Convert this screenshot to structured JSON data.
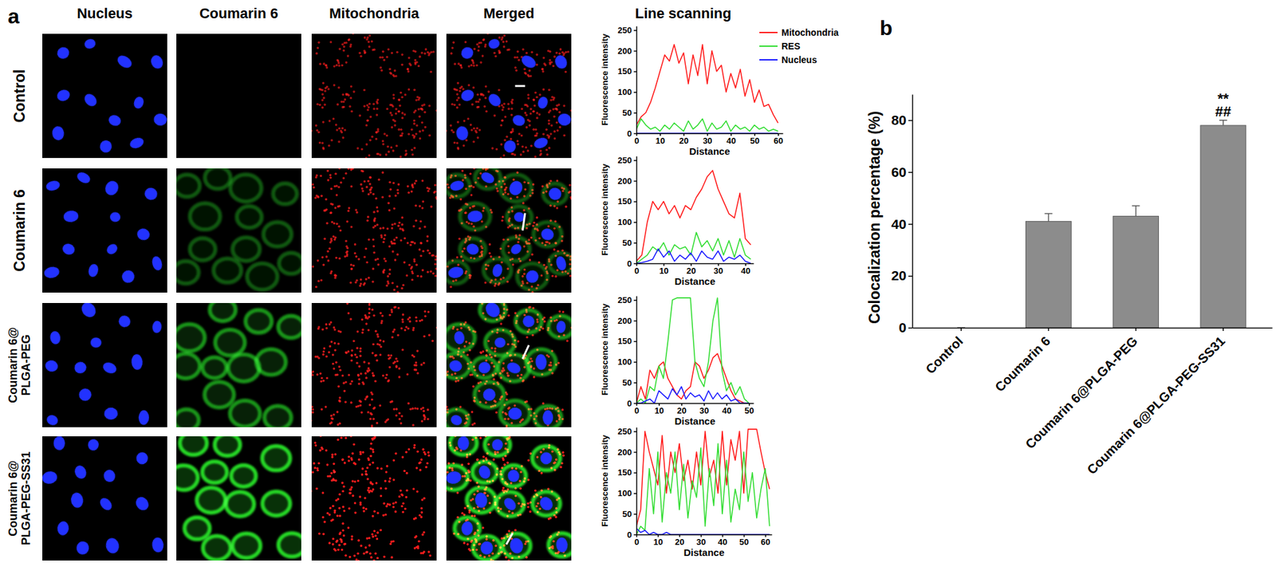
{
  "figure": {
    "panels": [
      "a",
      "b"
    ],
    "column_headers": [
      "Nucleus",
      "Coumarin 6",
      "Mitochondria",
      "Merged"
    ],
    "row_labels": [
      [
        "Control"
      ],
      [
        "Coumarin 6"
      ],
      [
        "Coumarin 6@",
        "PLGA-PEG"
      ],
      [
        "Coumarin 6@",
        "PLGA-PEG-SS31"
      ]
    ],
    "line_scan_title": "Line scanning"
  },
  "chart_data": [
    {
      "type": "line",
      "xlabel": "Distance",
      "ylabel": "Fluorescence intensity",
      "legend": "upper right",
      "x": [
        0,
        2,
        4,
        6,
        8,
        10,
        12,
        14,
        16,
        18,
        20,
        22,
        24,
        26,
        28,
        30,
        32,
        34,
        36,
        38,
        40,
        42,
        44,
        46,
        48,
        50,
        52,
        54,
        56,
        58,
        60
      ],
      "series": [
        {
          "name": "Mitochondria",
          "color": "#ff1a1a",
          "values": [
            20,
            40,
            50,
            75,
            110,
            150,
            190,
            175,
            215,
            170,
            195,
            120,
            190,
            140,
            215,
            120,
            200,
            150,
            165,
            100,
            145,
            110,
            155,
            90,
            130,
            75,
            105,
            65,
            70,
            45,
            25
          ]
        },
        {
          "name": "RES",
          "color": "#33dd33",
          "values": [
            10,
            35,
            20,
            10,
            15,
            5,
            20,
            10,
            25,
            15,
            5,
            30,
            10,
            20,
            35,
            5,
            25,
            10,
            15,
            30,
            5,
            20,
            10,
            15,
            5,
            20,
            10,
            15,
            5,
            10,
            5
          ]
        },
        {
          "name": "Nucleus",
          "color": "#1a1aff",
          "values": [
            0,
            0,
            0,
            0,
            0,
            0,
            0,
            0,
            0,
            0,
            0,
            0,
            0,
            0,
            0,
            0,
            0,
            0,
            0,
            0,
            0,
            0,
            0,
            0,
            0,
            0,
            0,
            0,
            0,
            0,
            0
          ]
        }
      ],
      "xlim": [
        0,
        62
      ],
      "xticks": [
        0,
        10,
        20,
        30,
        40,
        50,
        60
      ],
      "ylim": [
        0,
        260
      ],
      "yticks": [
        0,
        50,
        100,
        150,
        200,
        250
      ]
    },
    {
      "type": "line",
      "xlabel": "Distance",
      "ylabel": "Fluorescence intensity",
      "x": [
        0,
        2,
        4,
        6,
        8,
        10,
        12,
        14,
        16,
        18,
        20,
        22,
        24,
        26,
        28,
        30,
        32,
        34,
        36,
        38,
        40,
        42
      ],
      "series": [
        {
          "color": "#ff1a1a",
          "values": [
            5,
            20,
            100,
            150,
            130,
            150,
            120,
            140,
            110,
            140,
            130,
            160,
            180,
            210,
            225,
            180,
            150,
            120,
            110,
            170,
            60,
            45
          ]
        },
        {
          "color": "#33dd33",
          "values": [
            0,
            10,
            20,
            40,
            30,
            50,
            20,
            45,
            35,
            40,
            20,
            75,
            40,
            55,
            30,
            60,
            20,
            55,
            15,
            60,
            20,
            10
          ]
        },
        {
          "color": "#1a1aff",
          "values": [
            0,
            2,
            5,
            10,
            35,
            15,
            30,
            5,
            20,
            10,
            25,
            5,
            30,
            15,
            10,
            30,
            5,
            15,
            10,
            20,
            5,
            0
          ]
        }
      ],
      "xlim": [
        0,
        43
      ],
      "xticks": [
        0,
        10,
        20,
        30,
        40
      ],
      "ylim": [
        0,
        260
      ],
      "yticks": [
        0,
        50,
        100,
        150,
        200,
        250
      ]
    },
    {
      "type": "line",
      "xlabel": "Distance",
      "ylabel": "Fluorescence intensity",
      "x": [
        0,
        2,
        4,
        6,
        8,
        10,
        12,
        14,
        16,
        18,
        20,
        22,
        24,
        26,
        28,
        30,
        32,
        34,
        36,
        38,
        40,
        42,
        44,
        46,
        48,
        50
      ],
      "series": [
        {
          "color": "#ff1a1a",
          "values": [
            0,
            40,
            10,
            80,
            60,
            90,
            100,
            60,
            40,
            20,
            10,
            30,
            40,
            100,
            90,
            60,
            80,
            110,
            120,
            90,
            60,
            30,
            10,
            5,
            0,
            0
          ]
        },
        {
          "color": "#33dd33",
          "values": [
            0,
            10,
            0,
            40,
            30,
            90,
            60,
            150,
            250,
            255,
            255,
            255,
            255,
            100,
            60,
            40,
            100,
            200,
            255,
            80,
            30,
            50,
            20,
            40,
            10,
            0
          ]
        },
        {
          "color": "#1a1aff",
          "values": [
            0,
            0,
            5,
            10,
            0,
            30,
            20,
            10,
            35,
            20,
            40,
            10,
            25,
            15,
            20,
            5,
            30,
            10,
            25,
            10,
            20,
            5,
            10,
            0,
            0,
            0
          ]
        }
      ],
      "xlim": [
        0,
        52
      ],
      "xticks": [
        0,
        10,
        20,
        30,
        40,
        50
      ],
      "ylim": [
        0,
        260
      ],
      "yticks": [
        0,
        50,
        100,
        150,
        200,
        250
      ]
    },
    {
      "type": "line",
      "xlabel": "Distance",
      "ylabel": "Fluorescence intensity",
      "x": [
        0,
        2,
        4,
        6,
        8,
        10,
        12,
        14,
        16,
        18,
        20,
        22,
        24,
        26,
        28,
        30,
        32,
        34,
        36,
        38,
        40,
        42,
        44,
        46,
        48,
        50,
        52,
        54,
        56,
        58,
        60,
        62
      ],
      "series": [
        {
          "color": "#ff1a1a",
          "values": [
            20,
            60,
            250,
            200,
            160,
            120,
            240,
            100,
            200,
            150,
            220,
            130,
            180,
            110,
            200,
            120,
            250,
            140,
            180,
            100,
            250,
            120,
            230,
            180,
            250,
            100,
            255,
            255,
            255,
            200,
            150,
            110
          ]
        },
        {
          "color": "#33dd33",
          "values": [
            0,
            20,
            10,
            160,
            50,
            200,
            30,
            150,
            100,
            200,
            60,
            170,
            40,
            130,
            90,
            210,
            20,
            160,
            70,
            220,
            50,
            180,
            30,
            110,
            60,
            200,
            80,
            150,
            40,
            110,
            160,
            20
          ]
        },
        {
          "color": "#1a1aff",
          "values": [
            15,
            5,
            10,
            0,
            5,
            0,
            0,
            5,
            0,
            0,
            0,
            0,
            0,
            0,
            0,
            0,
            0,
            0,
            0,
            0,
            0,
            0,
            0,
            0,
            0,
            0,
            0,
            0,
            0,
            0,
            0,
            0
          ]
        }
      ],
      "xlim": [
        0,
        63
      ],
      "xticks": [
        0,
        10,
        20,
        30,
        40,
        50,
        60
      ],
      "ylim": [
        0,
        260
      ],
      "yticks": [
        0,
        50,
        100,
        150,
        200,
        250
      ]
    },
    {
      "type": "bar",
      "ylabel": "Colocalization percentage (%)",
      "categories": [
        "Control",
        "Coumarin 6",
        "Coumarin 6@PLGA-PEG",
        "Coumarin 6@PLGA-PEG-SS31"
      ],
      "values": [
        0,
        41,
        43,
        78
      ],
      "errors": [
        0,
        3,
        4,
        2
      ],
      "significance": [
        [],
        [],
        [],
        [
          "**",
          "##"
        ]
      ],
      "color": "#8c8c8c",
      "ylim": [
        0,
        90
      ],
      "yticks": [
        0,
        20,
        40,
        60,
        80
      ]
    }
  ]
}
